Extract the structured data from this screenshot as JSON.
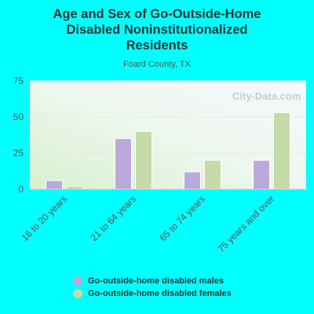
{
  "header": {
    "title_lines": [
      "Age and Sex of Go-Outside-Home",
      "Disabled Noninstitutionalized",
      "Residents"
    ],
    "subtitle": "Foard County, TX",
    "watermark": "City-Data.com"
  },
  "colors": {
    "background": "#00ffff",
    "males": "#bba9dc",
    "females": "#c5dba8",
    "axis_text": "#555555",
    "title_text": "#333333"
  },
  "chart_data": {
    "type": "bar",
    "title": "Age and Sex of Go-Outside-Home Disabled Noninstitutionalized Residents",
    "subtitle": "Foard County, TX",
    "categories": [
      "16 to 20 years",
      "21 to 64 years",
      "65 to 74 years",
      "75 years and over"
    ],
    "series": [
      {
        "name": "Go-outside-home disabled males",
        "values": [
          6,
          35,
          12,
          20
        ]
      },
      {
        "name": "Go-outside-home disabled females",
        "values": [
          2,
          40,
          20,
          53
        ]
      }
    ],
    "ylim": [
      0,
      75
    ],
    "yticks": [
      0,
      25,
      50,
      75
    ],
    "grid": true,
    "legend_position": "bottom"
  }
}
